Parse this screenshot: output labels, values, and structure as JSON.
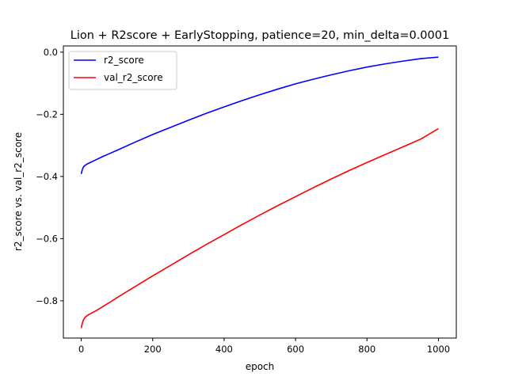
{
  "chart_data": {
    "type": "line",
    "title": "Lion + R2score + EarlyStopping, patience=20, min_delta=0.0001",
    "xlabel": "epoch",
    "ylabel": "r2_score vs. val_r2_score",
    "xlim": [
      -50,
      1050
    ],
    "ylim": [
      -0.92,
      0.02
    ],
    "xticks": [
      0,
      200,
      400,
      600,
      800,
      1000
    ],
    "yticks": [
      0.0,
      -0.2,
      -0.4,
      -0.6,
      -0.8
    ],
    "xtick_labels": [
      "0",
      "200",
      "400",
      "600",
      "800",
      "1000"
    ],
    "ytick_labels": [
      "0.0",
      "−0.2",
      "−0.4",
      "−0.6",
      "−0.8"
    ],
    "grid": false,
    "legend_position": "top-left",
    "series": [
      {
        "name": "r2_score",
        "color": "#0000ff",
        "x": [
          0,
          3,
          6,
          10,
          15,
          20,
          40,
          60,
          80,
          100,
          150,
          200,
          250,
          300,
          350,
          400,
          450,
          500,
          550,
          600,
          650,
          700,
          750,
          800,
          850,
          900,
          950,
          1000
        ],
        "y": [
          -0.392,
          -0.378,
          -0.37,
          -0.365,
          -0.361,
          -0.358,
          -0.347,
          -0.336,
          -0.326,
          -0.316,
          -0.29,
          -0.265,
          -0.242,
          -0.219,
          -0.197,
          -0.176,
          -0.156,
          -0.137,
          -0.119,
          -0.102,
          -0.087,
          -0.073,
          -0.06,
          -0.048,
          -0.038,
          -0.029,
          -0.021,
          -0.016
        ]
      },
      {
        "name": "val_r2_score",
        "color": "#ff0000",
        "x": [
          0,
          3,
          6,
          10,
          15,
          20,
          40,
          60,
          80,
          100,
          150,
          200,
          250,
          300,
          350,
          400,
          450,
          500,
          550,
          600,
          650,
          700,
          750,
          800,
          850,
          900,
          950,
          1000
        ],
        "y": [
          -0.888,
          -0.872,
          -0.862,
          -0.854,
          -0.849,
          -0.845,
          -0.833,
          -0.819,
          -0.805,
          -0.79,
          -0.755,
          -0.72,
          -0.686,
          -0.652,
          -0.619,
          -0.587,
          -0.555,
          -0.524,
          -0.494,
          -0.465,
          -0.436,
          -0.408,
          -0.381,
          -0.355,
          -0.33,
          -0.305,
          -0.28,
          -0.246
        ]
      }
    ]
  }
}
